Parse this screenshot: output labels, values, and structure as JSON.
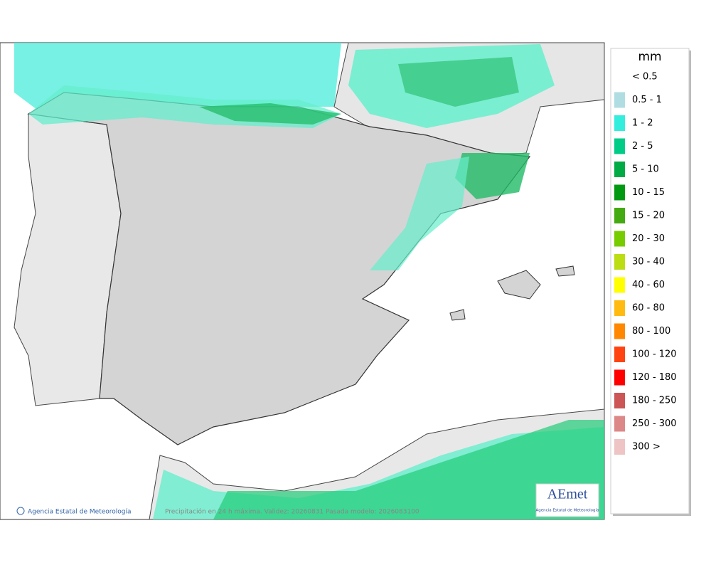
{
  "legend": {
    "title": "mm",
    "items": [
      {
        "label": "< 0.5"
      },
      {
        "label": "0.5 - 1",
        "color": "#b0dde2"
      },
      {
        "label": "1 - 2",
        "color": "#33eedd"
      },
      {
        "label": "2 - 5",
        "color": "#00cc88"
      },
      {
        "label": "5 - 10",
        "color": "#00aa44"
      },
      {
        "label": "10 - 15",
        "color": "#009911"
      },
      {
        "label": "15 - 20",
        "color": "#44aa11"
      },
      {
        "label": "20 - 30",
        "color": "#77cc00"
      },
      {
        "label": "30 - 40",
        "color": "#bbdd11"
      },
      {
        "label": "40 - 60",
        "color": "#ffff00"
      },
      {
        "label": "60 - 80",
        "color": "#ffbb11"
      },
      {
        "label": "80 - 100",
        "color": "#ff8800"
      },
      {
        "label": "100 - 120",
        "color": "#ff4411"
      },
      {
        "label": "120 - 180",
        "color": "#ff0000"
      },
      {
        "label": "180 - 250",
        "color": "#cc5555"
      },
      {
        "label": "250 - 300",
        "color": "#dd8888"
      },
      {
        "label": "300 >",
        "color": "#eec4c4"
      }
    ]
  },
  "footer": {
    "copyright": "Agencia Estatal de Meteorología",
    "caption": "Precipitación en 24 h máxima. Validez: 20260831 Pasada modelo: 2026083100"
  },
  "logo": {
    "name": "AEmet",
    "subtitle": "Agencia Estatal de Meteorología"
  }
}
